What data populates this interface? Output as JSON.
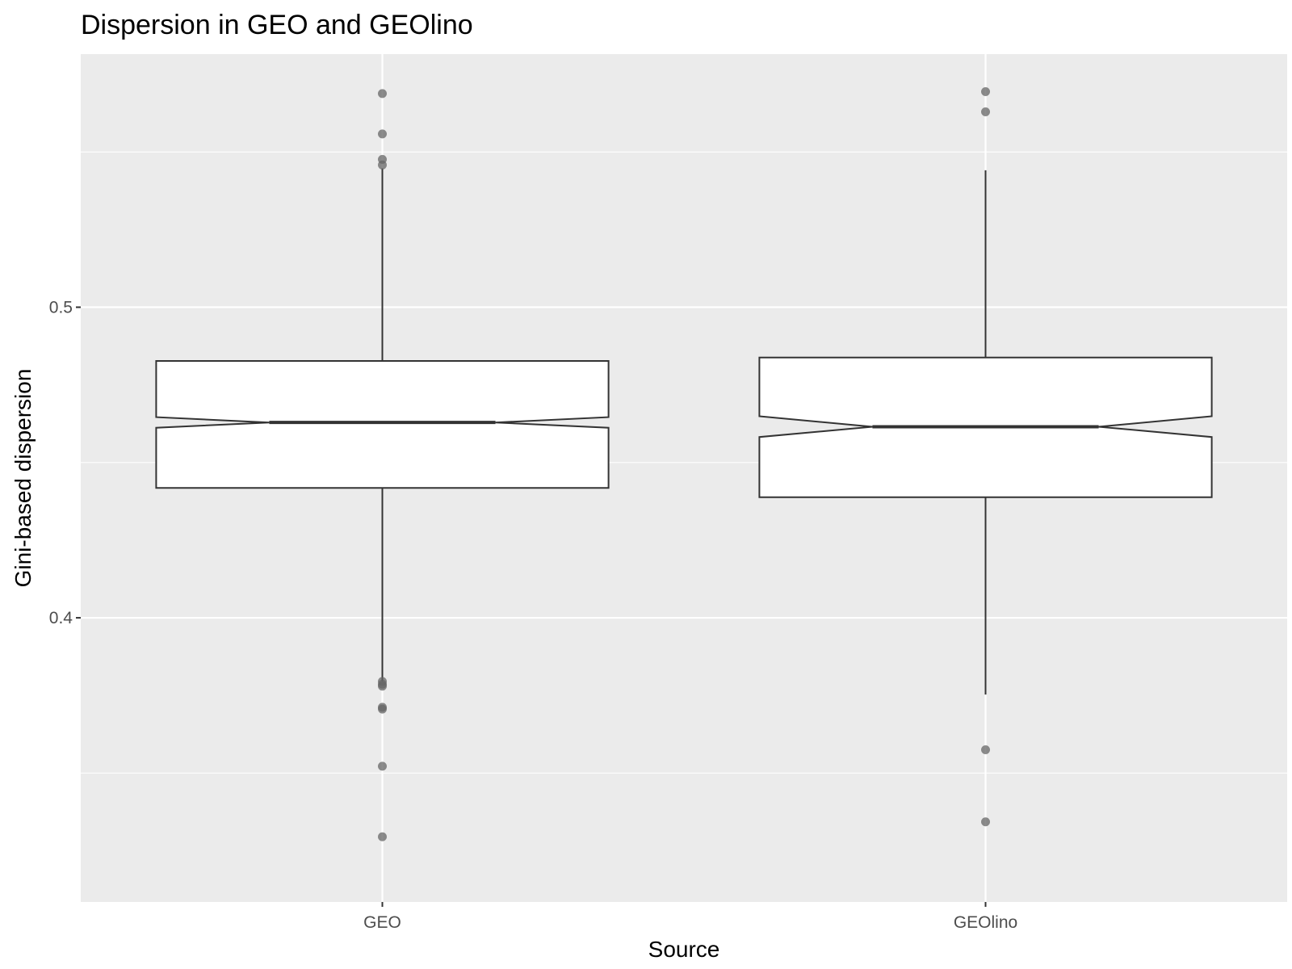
{
  "chart_data": {
    "type": "boxplot",
    "notched": true,
    "title": "Dispersion in GEO and GEOlino",
    "xlabel": "Source",
    "ylabel": "Gini-based dispersion",
    "categories": [
      "GEO",
      "GEOlino"
    ],
    "y_ticks": [
      {
        "value": 0.4,
        "label": "0.4"
      },
      {
        "value": 0.5,
        "label": "0.5"
      }
    ],
    "y_minor_gridlines": [
      0.35,
      0.45,
      0.55
    ],
    "ylim": [
      0.3085,
      0.5815
    ],
    "grid": true,
    "background_color": "#ebebeb",
    "grid_color": "#ffffff",
    "box_fill": "#ffffff",
    "box_stroke": "#333333",
    "outlier_color": "#666666",
    "boxes": [
      {
        "category": "GEO",
        "whisker_low": 0.3795,
        "q1": 0.4418,
        "median": 0.4629,
        "q3": 0.4827,
        "whisker_high": 0.5447,
        "notch_low": 0.4612,
        "notch_high": 0.4646,
        "outliers_high": [
          0.5688,
          0.5458,
          0.5476,
          0.5558
        ],
        "outliers_low": [
          0.3795,
          0.3786,
          0.378,
          0.3712,
          0.3706,
          0.3522,
          0.3295
        ]
      },
      {
        "category": "GEOlino",
        "whisker_low": 0.3753,
        "q1": 0.4388,
        "median": 0.4615,
        "q3": 0.4838,
        "whisker_high": 0.5441,
        "notch_low": 0.4582,
        "notch_high": 0.4649,
        "outliers_high": [
          0.5694,
          0.5629
        ],
        "outliers_low": [
          0.3575,
          0.3343
        ]
      }
    ]
  }
}
